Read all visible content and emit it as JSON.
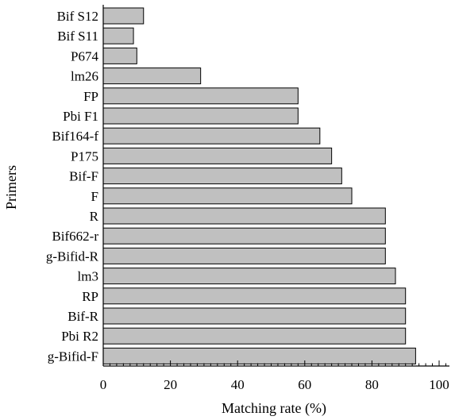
{
  "chart_data": {
    "type": "bar",
    "orientation": "horizontal",
    "categories": [
      "Bif S12",
      "Bif S11",
      "P674",
      "lm26",
      "FP",
      "Pbi F1",
      "Bif164-f",
      "P175",
      "Bif-F",
      "F",
      "R",
      "Bif662-r",
      "g-Bifid-R",
      "lm3",
      "RP",
      "Bif-R",
      "Pbi R2",
      "g-Bifid-F"
    ],
    "values": [
      12,
      9,
      10,
      29,
      58,
      58,
      64.5,
      68,
      71,
      74,
      84,
      84,
      84,
      87,
      90,
      90,
      90,
      93
    ],
    "title": "",
    "xlabel": "Matching rate (%)",
    "ylabel": "Primers",
    "xlim": [
      0,
      100
    ],
    "xticks": [
      "0",
      "20",
      "40",
      "60",
      "80",
      "100"
    ],
    "grid": false,
    "colors": {
      "bar_fill": "#c0c0c0",
      "bar_stroke": "#000000"
    }
  }
}
